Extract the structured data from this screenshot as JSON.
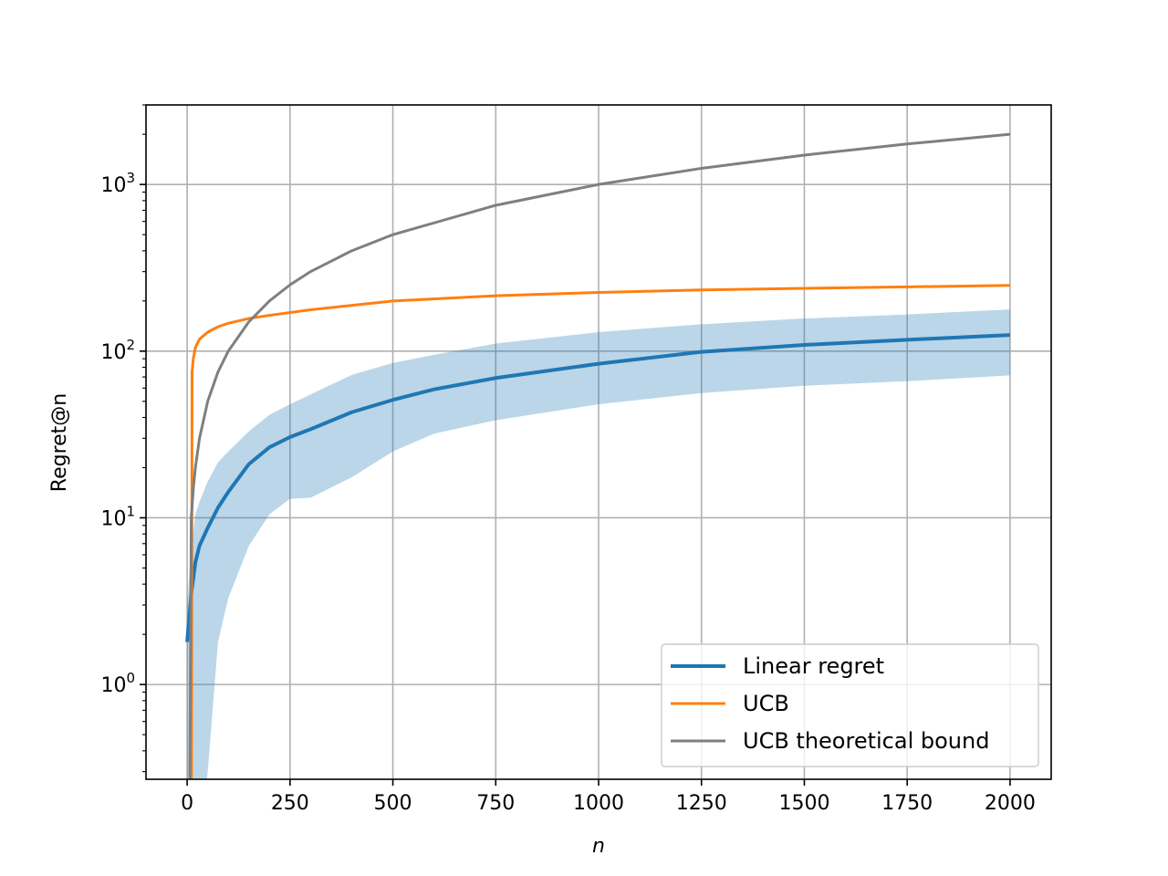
{
  "chart_data": {
    "type": "line",
    "title": "",
    "xlabel": "n",
    "ylabel": "Regret@n",
    "x_scale": "linear",
    "y_scale": "log",
    "xlim": [
      -100,
      2100
    ],
    "ylim": [
      0.27,
      3000
    ],
    "x_ticks": [
      0,
      250,
      500,
      750,
      1000,
      1250,
      1500,
      1750,
      2000
    ],
    "x_tick_labels": [
      "0",
      "250",
      "500",
      "750",
      "1000",
      "1250",
      "1500",
      "1750",
      "2000"
    ],
    "y_ticks": [
      1,
      10,
      100,
      1000
    ],
    "y_tick_labels": [
      {
        "base": "10",
        "exp": "0"
      },
      {
        "base": "10",
        "exp": "1"
      },
      {
        "base": "10",
        "exp": "2"
      },
      {
        "base": "10",
        "exp": "3"
      }
    ],
    "grid": true,
    "legend_position": "lower-right",
    "series": [
      {
        "name": "Linear regret",
        "color": "#1f77b4",
        "x": [
          0,
          10,
          20,
          30,
          50,
          75,
          100,
          150,
          200,
          250,
          300,
          400,
          500,
          600,
          750,
          1000,
          1250,
          1500,
          1750,
          2000
        ],
        "y": [
          1.8,
          3.5,
          5.4,
          6.8,
          8.7,
          11.5,
          14.3,
          21.0,
          26.5,
          30.5,
          34.0,
          43.0,
          51.0,
          59.0,
          69.0,
          84.0,
          99.0,
          109.0,
          117.0,
          125.0
        ],
        "band_lower": [
          0.1,
          0.1,
          0.1,
          0.1,
          0.3,
          1.8,
          3.3,
          6.8,
          10.5,
          13.0,
          13.2,
          17.5,
          25.0,
          32.0,
          38.5,
          48.0,
          56.0,
          62.0,
          66.0,
          71.5
        ],
        "band_upper": [
          3.0,
          6.5,
          10.5,
          12.5,
          16.5,
          21.5,
          25.0,
          33.0,
          41.5,
          48.0,
          55.0,
          72.0,
          85.0,
          95.0,
          111.0,
          130.0,
          145.0,
          157.0,
          166.0,
          178.0
        ]
      },
      {
        "name": "UCB",
        "color": "#ff7f0e",
        "x": [
          10,
          12,
          15,
          20,
          30,
          50,
          75,
          100,
          150,
          200,
          300,
          500,
          750,
          1000,
          1250,
          1500,
          1750,
          2000
        ],
        "y": [
          0.05,
          75,
          90,
          105,
          118,
          130,
          140,
          147,
          157,
          164,
          177,
          200,
          215,
          225,
          233,
          238,
          243,
          248
        ]
      },
      {
        "name": "UCB theoretical bound",
        "color": "#7f7f7f",
        "x": [
          5,
          10,
          15,
          20,
          30,
          50,
          75,
          100,
          150,
          200,
          250,
          300,
          400,
          500,
          750,
          1000,
          1250,
          1500,
          1750,
          2000
        ],
        "y": [
          0.05,
          10,
          15,
          20,
          30,
          50,
          75,
          100,
          150,
          200,
          250,
          300,
          400,
          500,
          750,
          1000,
          1250,
          1500,
          1750,
          2000
        ]
      }
    ]
  }
}
